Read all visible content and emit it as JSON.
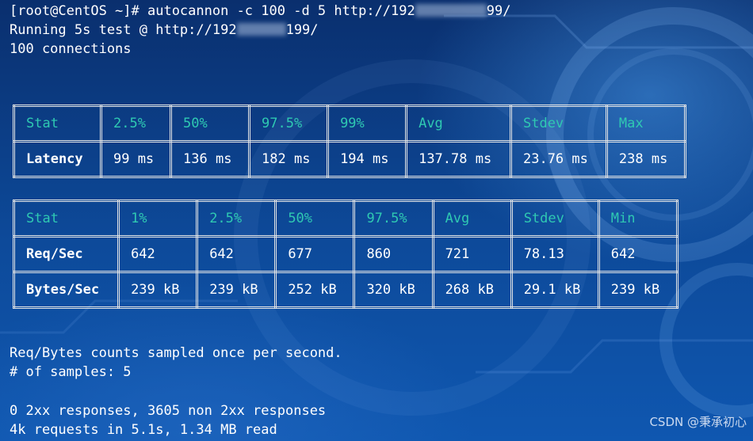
{
  "terminal": {
    "command_prompt": "[root@CentOS ~]# autocannon -c 100 -d 5 http://192",
    "command_tail": "99/",
    "running_prefix": "Running 5s test @ http://192",
    "running_tail": "199/",
    "connections": "100 connections",
    "sampled_note": "Req/Bytes counts sampled once per second.",
    "samples": "# of samples: 5",
    "responses": "0 2xx responses, 3605 non 2xx responses",
    "summary": "4k requests in 5.1s, 1.34 MB read"
  },
  "latency_table": {
    "headers": [
      "Stat",
      "2.5%",
      "50%",
      "97.5%",
      "99%",
      "Avg",
      "Stdev",
      "Max"
    ],
    "rows": [
      {
        "label": "Latency",
        "values": [
          "99 ms",
          "136 ms",
          "182 ms",
          "194 ms",
          "137.78 ms",
          "23.76 ms",
          "238 ms"
        ]
      }
    ]
  },
  "throughput_table": {
    "headers": [
      "Stat",
      "1%",
      "2.5%",
      "50%",
      "97.5%",
      "Avg",
      "Stdev",
      "Min"
    ],
    "rows": [
      {
        "label": "Req/Sec",
        "values": [
          "642",
          "642",
          "677",
          "860",
          "721",
          "78.13",
          "642"
        ]
      },
      {
        "label": "Bytes/Sec",
        "values": [
          "239 kB",
          "239 kB",
          "252 kB",
          "320 kB",
          "268 kB",
          "29.1 kB",
          "239 kB"
        ]
      }
    ]
  },
  "watermark": "CSDN @秉承初心",
  "colors": {
    "header_text": "#2fc9b2",
    "body_text": "#ffffff",
    "background": "#0b3f86"
  }
}
